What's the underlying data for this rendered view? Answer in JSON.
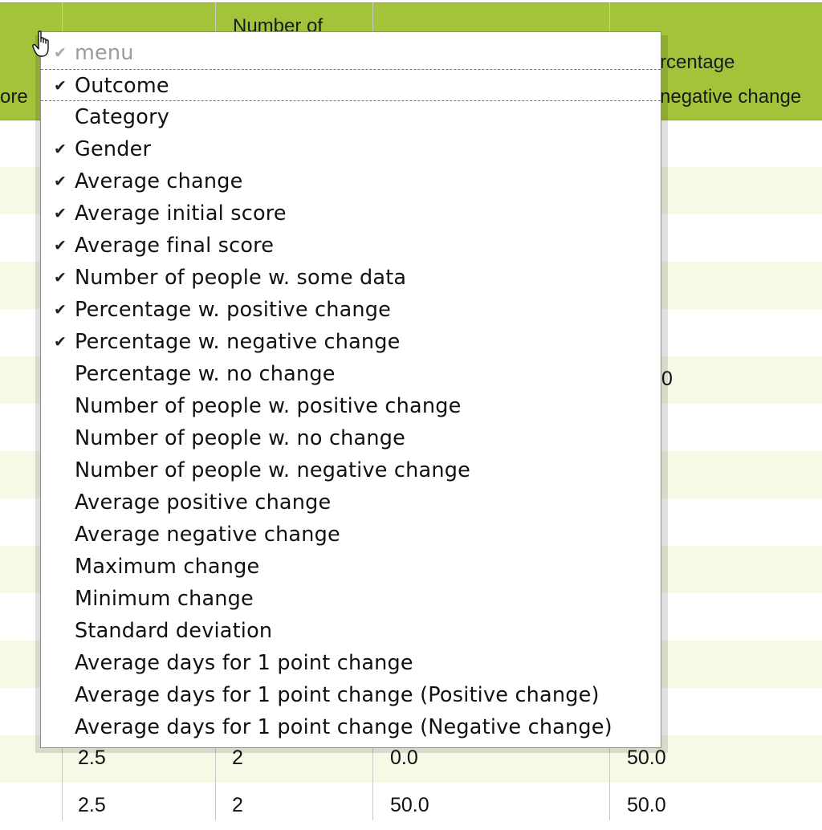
{
  "table": {
    "headers": [
      {
        "text": "ore"
      },
      {
        "text": "Number of"
      },
      {
        "text": "rcentage"
      },
      {
        "text": "negative change"
      }
    ],
    "partial_values": [
      "0"
    ],
    "rows": [
      {
        "avg_final": "2.5",
        "num_people": "2",
        "pct_pos": "0.0",
        "pct_neg": "50.0"
      },
      {
        "avg_final": "2.5",
        "num_people": "2",
        "pct_pos": "50.0",
        "pct_neg": "50.0"
      }
    ]
  },
  "menu": {
    "title": "menu",
    "checkmark_glyph": "✔",
    "items": [
      {
        "label": "Outcome",
        "checked": true
      },
      {
        "label": "Category",
        "checked": false
      },
      {
        "label": "Gender",
        "checked": true
      },
      {
        "label": "Average change",
        "checked": true
      },
      {
        "label": "Average initial score",
        "checked": true
      },
      {
        "label": "Average final score",
        "checked": true
      },
      {
        "label": "Number of people w. some data",
        "checked": true
      },
      {
        "label": "Percentage w. positive change",
        "checked": true
      },
      {
        "label": "Percentage w. negative change",
        "checked": true
      },
      {
        "label": "Percentage w. no change",
        "checked": false
      },
      {
        "label": "Number of people w. positive change",
        "checked": false
      },
      {
        "label": "Number of people w. no change",
        "checked": false
      },
      {
        "label": "Number of people w. negative change",
        "checked": false
      },
      {
        "label": "Average positive change",
        "checked": false
      },
      {
        "label": "Average negative change",
        "checked": false
      },
      {
        "label": "Maximum change",
        "checked": false
      },
      {
        "label": "Minimum change",
        "checked": false
      },
      {
        "label": "Standard deviation",
        "checked": false
      },
      {
        "label": "Average days for 1 point change",
        "checked": false
      },
      {
        "label": "Average days for 1 point change (Positive change)",
        "checked": false
      },
      {
        "label": "Average days for 1 point change (Negative change)",
        "checked": false
      }
    ]
  },
  "colors": {
    "header_bg": "#a2c33a",
    "alt_row_bg": "#f6f9e6",
    "menu_title": "#9b9b9b"
  },
  "cursor_icon": "hand-pointer-icon"
}
